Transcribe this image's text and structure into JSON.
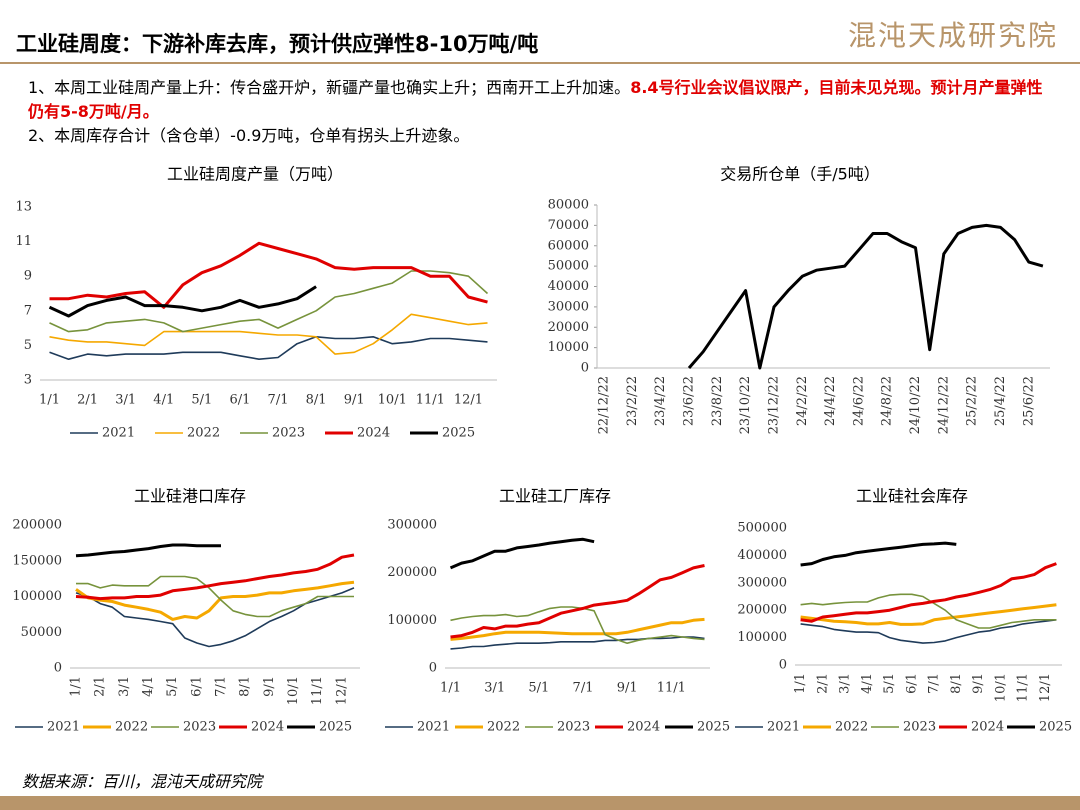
{
  "header": {
    "title": "工业硅周度：下游补库去库，预计供应弹性8-10万吨/吨",
    "logo": "混沌天成研究院"
  },
  "notes": [
    {
      "text": "1、本周工业硅周产量上升：传合盛开炉，新疆产量也确实上升；西南开工上升加速。",
      "highlight": "8.4号行业会议倡议限产，目前未见兑现。预计月产量弹性仍有5-8万吨/月。"
    },
    {
      "text": "2、本周库存合计（含仓单）-0.9万吨，仓单有拐头上升迹象。"
    }
  ],
  "source": "数据来源：百川，混沌天成研究院",
  "chart_data": [
    {
      "type": "line",
      "title": "工业硅周度产量（万吨）",
      "categories": [
        "1/1",
        null,
        "2/1",
        null,
        "3/1",
        null,
        "4/1",
        null,
        "5/1",
        null,
        "6/1",
        null,
        "7/1",
        null,
        "8/1",
        null,
        "9/1",
        null,
        "10/1",
        null,
        "11/1",
        null,
        "12/1",
        null
      ],
      "ylim": [
        3,
        13
      ],
      "yticks": [
        3,
        5,
        7,
        9,
        11,
        13
      ],
      "series": [
        {
          "name": "2021",
          "color": "#1f3b5a",
          "values": [
            4.6,
            4.2,
            4.5,
            4.4,
            4.5,
            4.5,
            4.5,
            4.6,
            4.6,
            4.6,
            4.4,
            4.2,
            4.3,
            5.1,
            5.5,
            5.4,
            5.4,
            5.5,
            5.1,
            5.2,
            5.4,
            5.4,
            5.3,
            5.2
          ]
        },
        {
          "name": "2022",
          "color": "#f5a800",
          "values": [
            5.5,
            5.3,
            5.2,
            5.2,
            5.1,
            5.0,
            5.8,
            5.8,
            5.8,
            5.8,
            5.8,
            5.7,
            5.6,
            5.6,
            5.5,
            4.5,
            4.6,
            5.1,
            5.9,
            6.8,
            6.6,
            6.4,
            6.2,
            6.3
          ]
        },
        {
          "name": "2023",
          "color": "#77933c",
          "values": [
            6.3,
            5.8,
            5.9,
            6.3,
            6.4,
            6.5,
            6.3,
            5.8,
            6.0,
            6.2,
            6.4,
            6.5,
            6.0,
            6.5,
            7.0,
            7.8,
            8.0,
            8.3,
            8.6,
            9.3,
            9.3,
            9.2,
            9.0,
            8.0
          ]
        },
        {
          "name": "2024",
          "color": "#e00000",
          "values": [
            7.7,
            7.7,
            7.9,
            7.8,
            8.0,
            8.1,
            7.2,
            8.5,
            9.2,
            9.6,
            10.2,
            10.9,
            10.6,
            10.3,
            10.0,
            9.5,
            9.4,
            9.5,
            9.5,
            9.5,
            9.0,
            9.0,
            7.8,
            7.5
          ]
        },
        {
          "name": "2025",
          "color": "#000000",
          "values": [
            7.2,
            6.7,
            7.3,
            7.6,
            7.8,
            7.3,
            7.3,
            7.2,
            7.0,
            7.2,
            7.6,
            7.2,
            7.4,
            7.7,
            8.4,
            null,
            null,
            null,
            null,
            null,
            null,
            null,
            null,
            null
          ]
        }
      ]
    },
    {
      "type": "line",
      "title": "交易所仓单（手/5吨）",
      "categories": [
        "22/12/22",
        null,
        "23/2/22",
        null,
        "23/4/22",
        null,
        "23/6/22",
        null,
        "23/8/22",
        null,
        "23/10/22",
        null,
        "23/12/22",
        null,
        "24/2/22",
        null,
        "24/4/22",
        null,
        "24/6/22",
        null,
        "24/8/22",
        null,
        "24/10/22",
        null,
        "24/12/22",
        null,
        "25/2/22",
        null,
        "25/4/22",
        null,
        "25/6/22",
        null
      ],
      "ylim": [
        0,
        80000
      ],
      "yticks": [
        0,
        10000,
        20000,
        30000,
        40000,
        50000,
        60000,
        70000,
        80000
      ],
      "series": [
        {
          "color": "#000000",
          "values": [
            null,
            null,
            null,
            null,
            null,
            null,
            0,
            8000,
            18000,
            28000,
            38000,
            0,
            30000,
            38000,
            45000,
            48000,
            49000,
            50000,
            58000,
            66000,
            66000,
            62000,
            59000,
            9000,
            56000,
            66000,
            69000,
            70000,
            69000,
            63000,
            52000,
            50000
          ]
        }
      ]
    },
    {
      "type": "line",
      "title": "工业硅港口库存",
      "categories": [
        "1/1",
        null,
        "2/1",
        null,
        "3/1",
        null,
        "4/1",
        null,
        "5/1",
        null,
        "6/1",
        null,
        "7/1",
        null,
        "8/1",
        null,
        "9/1",
        null,
        "10/1",
        null,
        "11/1",
        null,
        "12/1",
        null
      ],
      "ylim": [
        0,
        200000
      ],
      "yticks": [
        0,
        50000,
        100000,
        150000,
        200000
      ],
      "series": [
        {
          "name": "2021",
          "color": "#1f3b5a",
          "values": [
            105000,
            100000,
            90000,
            85000,
            72000,
            70000,
            68000,
            65000,
            62000,
            42000,
            35000,
            30000,
            33000,
            38000,
            45000,
            55000,
            65000,
            72000,
            80000,
            90000,
            95000,
            100000,
            105000,
            112000
          ]
        },
        {
          "name": "2022",
          "color": "#f5a800",
          "values": [
            110000,
            98000,
            95000,
            93000,
            88000,
            85000,
            82000,
            78000,
            68000,
            72000,
            70000,
            80000,
            98000,
            100000,
            100000,
            102000,
            105000,
            105000,
            108000,
            110000,
            112000,
            115000,
            118000,
            120000
          ]
        },
        {
          "name": "2023",
          "color": "#77933c",
          "values": [
            118000,
            118000,
            112000,
            116000,
            115000,
            115000,
            115000,
            128000,
            128000,
            128000,
            125000,
            112000,
            95000,
            80000,
            75000,
            72000,
            72000,
            80000,
            85000,
            90000,
            100000,
            100000,
            100000,
            100000
          ]
        },
        {
          "name": "2024",
          "color": "#e00000",
          "values": [
            100000,
            99000,
            97000,
            98000,
            98000,
            100000,
            100000,
            102000,
            108000,
            110000,
            112000,
            115000,
            118000,
            120000,
            122000,
            125000,
            128000,
            130000,
            133000,
            135000,
            138000,
            145000,
            155000,
            158000
          ]
        },
        {
          "name": "2025",
          "color": "#000000",
          "values": [
            157000,
            158000,
            160000,
            162000,
            163000,
            165000,
            167000,
            170000,
            172000,
            172000,
            171000,
            171000,
            171000,
            null,
            null,
            null,
            null,
            null,
            null,
            null,
            null,
            null,
            null,
            null
          ]
        }
      ]
    },
    {
      "type": "line",
      "title": "工业硅工厂库存",
      "categories": [
        "1/1",
        null,
        null,
        null,
        "3/1",
        null,
        null,
        null,
        "5/1",
        null,
        null,
        null,
        "7/1",
        null,
        null,
        null,
        "9/1",
        null,
        null,
        null,
        "11/1",
        null,
        null,
        null
      ],
      "ylim": [
        0,
        300000
      ],
      "yticks": [
        0,
        100000,
        200000,
        300000
      ],
      "series": [
        {
          "name": "2021",
          "color": "#1f3b5a",
          "values": [
            40000,
            42000,
            45000,
            45000,
            48000,
            50000,
            52000,
            52000,
            52000,
            53000,
            55000,
            55000,
            55000,
            55000,
            58000,
            58000,
            60000,
            60000,
            62000,
            62000,
            63000,
            65000,
            65000,
            62000
          ]
        },
        {
          "name": "2022",
          "color": "#f5a800",
          "values": [
            60000,
            62000,
            65000,
            68000,
            72000,
            75000,
            75000,
            75000,
            75000,
            74000,
            73000,
            72000,
            72000,
            72000,
            72000,
            72000,
            75000,
            80000,
            85000,
            90000,
            95000,
            95000,
            100000,
            102000
          ]
        },
        {
          "name": "2023",
          "color": "#77933c",
          "values": [
            100000,
            105000,
            108000,
            110000,
            110000,
            112000,
            108000,
            110000,
            118000,
            125000,
            128000,
            128000,
            125000,
            120000,
            70000,
            60000,
            52000,
            58000,
            62000,
            65000,
            68000,
            65000,
            62000,
            60000
          ]
        },
        {
          "name": "2024",
          "color": "#e00000",
          "values": [
            65000,
            68000,
            75000,
            85000,
            82000,
            88000,
            88000,
            92000,
            95000,
            105000,
            115000,
            120000,
            125000,
            132000,
            135000,
            138000,
            142000,
            155000,
            170000,
            185000,
            190000,
            200000,
            210000,
            215000
          ]
        },
        {
          "name": "2025",
          "color": "#000000",
          "values": [
            210000,
            220000,
            225000,
            235000,
            245000,
            245000,
            252000,
            255000,
            258000,
            262000,
            265000,
            268000,
            270000,
            265000,
            null,
            null,
            null,
            null,
            null,
            null,
            null,
            null,
            null,
            null
          ]
        }
      ]
    },
    {
      "type": "line",
      "title": "工业硅社会库存",
      "categories": [
        "1/1",
        null,
        "2/1",
        null,
        "3/1",
        null,
        "4/1",
        null,
        "5/1",
        null,
        "6/1",
        null,
        "7/1",
        null,
        "8/1",
        null,
        "9/1",
        null,
        "10/1",
        null,
        "11/1",
        null,
        "12/1",
        null
      ],
      "ylim": [
        0,
        500000
      ],
      "yticks": [
        0,
        100000,
        200000,
        300000,
        400000,
        500000
      ],
      "series": [
        {
          "name": "2021",
          "color": "#1f3b5a",
          "values": [
            150000,
            145000,
            140000,
            130000,
            125000,
            120000,
            120000,
            118000,
            100000,
            90000,
            85000,
            80000,
            82000,
            88000,
            100000,
            110000,
            120000,
            125000,
            135000,
            140000,
            150000,
            155000,
            160000,
            165000
          ]
        },
        {
          "name": "2022",
          "color": "#f5a800",
          "values": [
            175000,
            170000,
            165000,
            160000,
            158000,
            155000,
            150000,
            150000,
            155000,
            148000,
            148000,
            150000,
            165000,
            170000,
            175000,
            180000,
            185000,
            190000,
            195000,
            200000,
            205000,
            210000,
            215000,
            220000
          ]
        },
        {
          "name": "2023",
          "color": "#77933c",
          "values": [
            220000,
            225000,
            220000,
            225000,
            228000,
            230000,
            230000,
            245000,
            255000,
            258000,
            258000,
            250000,
            225000,
            200000,
            165000,
            150000,
            135000,
            135000,
            145000,
            155000,
            160000,
            165000,
            165000,
            165000
          ]
        },
        {
          "name": "2024",
          "color": "#e00000",
          "values": [
            165000,
            160000,
            175000,
            180000,
            185000,
            190000,
            190000,
            195000,
            200000,
            210000,
            220000,
            225000,
            232000,
            238000,
            248000,
            255000,
            265000,
            275000,
            290000,
            315000,
            320000,
            330000,
            355000,
            370000
          ]
        },
        {
          "name": "2025",
          "color": "#000000",
          "values": [
            365000,
            370000,
            385000,
            395000,
            400000,
            410000,
            415000,
            420000,
            425000,
            430000,
            435000,
            440000,
            442000,
            445000,
            440000,
            null,
            null,
            null,
            null,
            null,
            null,
            null,
            null,
            null
          ]
        }
      ]
    }
  ]
}
